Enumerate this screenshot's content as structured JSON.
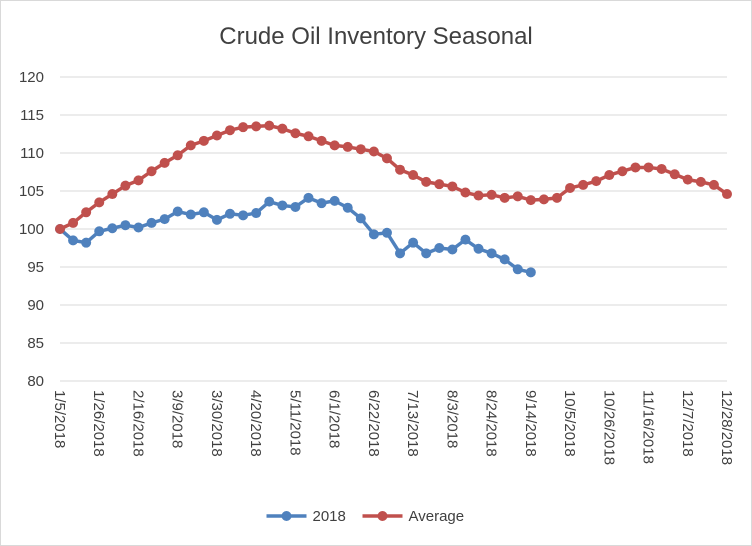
{
  "chart_data": {
    "type": "line",
    "title": "Crude Oil Inventory Seasonal",
    "categories": [
      "1/5/2018",
      null,
      null,
      "1/26/2018",
      null,
      null,
      "2/16/2018",
      null,
      null,
      "3/9/2018",
      null,
      null,
      "3/30/2018",
      null,
      null,
      "4/20/2018",
      null,
      null,
      "5/11/2018",
      null,
      null,
      "6/1/2018",
      null,
      null,
      "6/22/2018",
      null,
      null,
      "7/13/2018",
      null,
      null,
      "8/3/2018",
      null,
      null,
      "8/24/2018",
      null,
      null,
      "9/14/2018",
      null,
      null,
      "10/5/2018",
      null,
      null,
      "10/26/2018",
      null,
      null,
      "11/16/2018",
      null,
      null,
      "12/7/2018",
      null,
      null,
      "12/28/2018"
    ],
    "series": [
      {
        "name": "2018",
        "color": "#4f81bd",
        "values": [
          100,
          98.5,
          98.2,
          99.7,
          100.1,
          100.5,
          100.2,
          100.8,
          101.3,
          102.3,
          101.9,
          102.2,
          101.2,
          102,
          101.8,
          102.1,
          103.6,
          103.1,
          102.9,
          104.1,
          103.4,
          103.7,
          102.8,
          101.4,
          99.3,
          99.5,
          96.8,
          98.2,
          96.8,
          97.5,
          97.3,
          98.6,
          97.4,
          96.8,
          96,
          94.7,
          94.3,
          null,
          null,
          null,
          null,
          null,
          null,
          null,
          null,
          null,
          null,
          null,
          null,
          null,
          null,
          null
        ]
      },
      {
        "name": "Average",
        "color": "#c0504d",
        "values": [
          100,
          100.8,
          102.2,
          103.5,
          104.6,
          105.7,
          106.4,
          107.6,
          108.7,
          109.7,
          111,
          111.6,
          112.3,
          113,
          113.4,
          113.5,
          113.6,
          113.2,
          112.6,
          112.2,
          111.6,
          111,
          110.8,
          110.5,
          110.2,
          109.3,
          107.8,
          107.1,
          106.2,
          105.9,
          105.6,
          104.8,
          104.4,
          104.5,
          104.1,
          104.3,
          103.8,
          103.9,
          104.1,
          105.4,
          105.8,
          106.3,
          107.1,
          107.6,
          108.1,
          108.1,
          107.9,
          107.2,
          106.5,
          106.2,
          105.8,
          104.6
        ]
      }
    ],
    "ylim": [
      80,
      120
    ],
    "yticks": [
      80,
      85,
      90,
      95,
      100,
      105,
      110,
      115,
      120
    ],
    "grid": true,
    "legend": "bottom"
  }
}
